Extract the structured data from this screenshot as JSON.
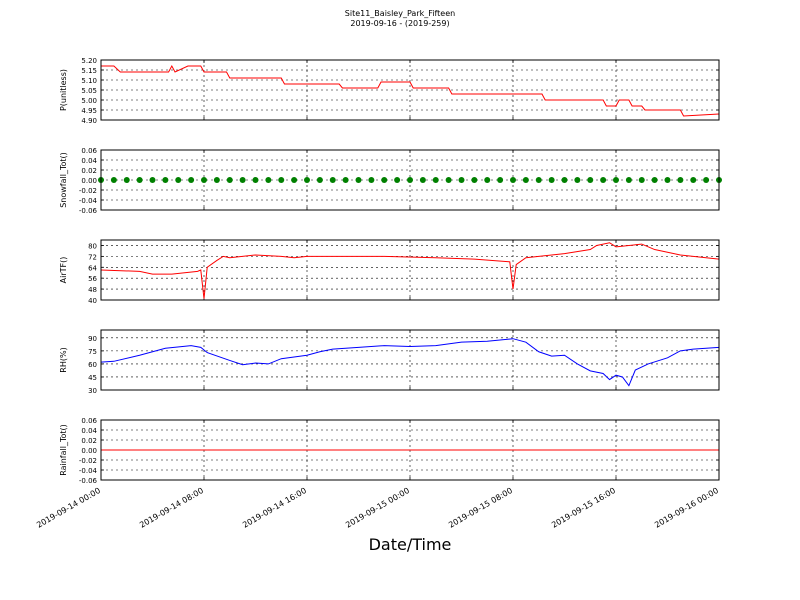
{
  "figure": {
    "title": "Site11_Baisley_Park_Fifteen",
    "subtitle": "2019-09-16 - (2019-259)",
    "xlabel": "Date/Time"
  },
  "chart_data": [
    {
      "type": "line",
      "ylabel": "P(unitless)",
      "grid": true,
      "xlim": [
        "2019-09-14 00:00",
        "2019-09-16 00:00"
      ],
      "xticks": [
        "2019-09-14 00:00",
        "2019-09-14 08:00",
        "2019-09-14 16:00",
        "2019-09-15 00:00",
        "2019-09-15 08:00",
        "2019-09-15 16:00",
        "2019-09-16 00:00"
      ],
      "ylim": [
        4.9,
        5.2
      ],
      "yticks": [
        {
          "value": 4.9,
          "label": "4.90"
        },
        4.95,
        {
          "value": 5.0,
          "label": "5.00"
        },
        5.05,
        {
          "value": 5.1,
          "label": "5.10"
        },
        5.15,
        {
          "value": 5.2,
          "label": "5.20"
        }
      ],
      "x": [
        "2019-09-14 00:00",
        "2019-09-14 01:00",
        "2019-09-14 01:30",
        "2019-09-14 05:15",
        "2019-09-14 05:30",
        "2019-09-14 05:45",
        "2019-09-14 06:45",
        "2019-09-14 07:45",
        "2019-09-14 08:00",
        "2019-09-14 09:45",
        "2019-09-14 10:00",
        "2019-09-14 14:00",
        "2019-09-14 14:15",
        "2019-09-14 18:30",
        "2019-09-14 18:45",
        "2019-09-14 21:30",
        "2019-09-14 21:45",
        "2019-09-15 00:00",
        "2019-09-15 00:15",
        "2019-09-15 03:00",
        "2019-09-15 03:15",
        "2019-09-15 10:15",
        "2019-09-15 10:30",
        "2019-09-15 15:00",
        "2019-09-15 15:15",
        "2019-09-15 16:00",
        "2019-09-15 16:15",
        "2019-09-15 17:00",
        "2019-09-15 17:15",
        "2019-09-15 18:00",
        "2019-09-15 18:15",
        "2019-09-15 21:00",
        "2019-09-15 21:15",
        "2019-09-16 00:00"
      ],
      "series": [
        {
          "name": "P",
          "color": "#ff0000",
          "values": [
            5.17,
            5.17,
            5.14,
            5.14,
            5.17,
            5.14,
            5.17,
            5.17,
            5.14,
            5.14,
            5.11,
            5.11,
            5.08,
            5.08,
            5.06,
            5.06,
            5.09,
            5.09,
            5.06,
            5.06,
            5.03,
            5.03,
            5.0,
            5.0,
            4.97,
            4.97,
            5.0,
            5.0,
            4.97,
            4.97,
            4.95,
            4.95,
            4.92,
            4.93
          ]
        }
      ]
    },
    {
      "type": "scatter",
      "ylabel": "Snowfall_Tot()",
      "grid": true,
      "xlim": [
        "2019-09-14 00:00",
        "2019-09-16 00:00"
      ],
      "xticks": [
        "2019-09-14 00:00",
        "2019-09-14 08:00",
        "2019-09-14 16:00",
        "2019-09-15 00:00",
        "2019-09-15 08:00",
        "2019-09-15 16:00",
        "2019-09-16 00:00"
      ],
      "ylim": [
        -0.06,
        0.06
      ],
      "yticks": [
        -0.06,
        -0.04,
        -0.02,
        {
          "value": 0,
          "label": "0.00"
        },
        0.02,
        0.04,
        0.06
      ],
      "x": [
        "2019-09-14 00:00",
        "2019-09-14 01:00",
        "2019-09-14 02:00",
        "2019-09-14 03:00",
        "2019-09-14 04:00",
        "2019-09-14 05:00",
        "2019-09-14 06:00",
        "2019-09-14 07:00",
        "2019-09-14 08:00",
        "2019-09-14 09:00",
        "2019-09-14 10:00",
        "2019-09-14 11:00",
        "2019-09-14 12:00",
        "2019-09-14 13:00",
        "2019-09-14 14:00",
        "2019-09-14 15:00",
        "2019-09-14 16:00",
        "2019-09-14 17:00",
        "2019-09-14 18:00",
        "2019-09-14 19:00",
        "2019-09-14 20:00",
        "2019-09-14 21:00",
        "2019-09-14 22:00",
        "2019-09-14 23:00",
        "2019-09-15 00:00",
        "2019-09-15 01:00",
        "2019-09-15 02:00",
        "2019-09-15 03:00",
        "2019-09-15 04:00",
        "2019-09-15 05:00",
        "2019-09-15 06:00",
        "2019-09-15 07:00",
        "2019-09-15 08:00",
        "2019-09-15 09:00",
        "2019-09-15 10:00",
        "2019-09-15 11:00",
        "2019-09-15 12:00",
        "2019-09-15 13:00",
        "2019-09-15 14:00",
        "2019-09-15 15:00",
        "2019-09-15 16:00",
        "2019-09-15 17:00",
        "2019-09-15 18:00",
        "2019-09-15 19:00",
        "2019-09-15 20:00",
        "2019-09-15 21:00",
        "2019-09-15 22:00",
        "2019-09-15 23:00",
        "2019-09-16 00:00"
      ],
      "series": [
        {
          "name": "Snowfall_Tot",
          "color": "#008000",
          "values": [
            0,
            0,
            0,
            0,
            0,
            0,
            0,
            0,
            0,
            0,
            0,
            0,
            0,
            0,
            0,
            0,
            0,
            0,
            0,
            0,
            0,
            0,
            0,
            0,
            0,
            0,
            0,
            0,
            0,
            0,
            0,
            0,
            0,
            0,
            0,
            0,
            0,
            0,
            0,
            0,
            0,
            0,
            0,
            0,
            0,
            0,
            0,
            0,
            0
          ]
        }
      ]
    },
    {
      "type": "line",
      "ylabel": "AirTF()",
      "grid": true,
      "xlim": [
        "2019-09-14 00:00",
        "2019-09-16 00:00"
      ],
      "xticks": [
        "2019-09-14 00:00",
        "2019-09-14 08:00",
        "2019-09-14 16:00",
        "2019-09-15 00:00",
        "2019-09-15 08:00",
        "2019-09-15 16:00",
        "2019-09-16 00:00"
      ],
      "ylim": [
        40,
        84
      ],
      "yticks": [
        40,
        48,
        56,
        64,
        72,
        80
      ],
      "x": [
        "2019-09-14 00:00",
        "2019-09-14 03:00",
        "2019-09-14 04:00",
        "2019-09-14 05:30",
        "2019-09-14 07:30",
        "2019-09-14 07:45",
        "2019-09-14 08:00",
        "2019-09-14 08:15",
        "2019-09-14 09:00",
        "2019-09-14 09:30",
        "2019-09-14 10:00",
        "2019-09-14 12:00",
        "2019-09-14 14:00",
        "2019-09-14 15:00",
        "2019-09-14 16:00",
        "2019-09-14 18:00",
        "2019-09-14 22:00",
        "2019-09-15 02:00",
        "2019-09-15 05:00",
        "2019-09-15 07:45",
        "2019-09-15 08:00",
        "2019-09-15 08:15",
        "2019-09-15 09:00",
        "2019-09-15 12:00",
        "2019-09-15 14:00",
        "2019-09-15 14:30",
        "2019-09-15 15:30",
        "2019-09-15 16:00",
        "2019-09-15 18:00",
        "2019-09-15 19:00",
        "2019-09-15 21:00",
        "2019-09-16 00:00"
      ],
      "series": [
        {
          "name": "AirTF",
          "color": "#ff0000",
          "values": [
            62,
            61,
            59,
            59,
            61,
            62,
            41,
            64,
            69,
            72,
            71,
            73,
            72,
            71,
            72,
            72,
            72,
            71,
            70,
            68,
            48,
            66,
            71,
            74,
            77,
            80,
            82,
            79,
            81,
            77,
            73,
            70
          ]
        }
      ]
    },
    {
      "type": "line",
      "ylabel": "RH(%)",
      "grid": true,
      "xlim": [
        "2019-09-14 00:00",
        "2019-09-16 00:00"
      ],
      "xticks": [
        "2019-09-14 00:00",
        "2019-09-14 08:00",
        "2019-09-14 16:00",
        "2019-09-15 00:00",
        "2019-09-15 08:00",
        "2019-09-15 16:00",
        "2019-09-16 00:00"
      ],
      "ylim": [
        30,
        99
      ],
      "yticks": [
        30,
        45,
        60,
        75,
        90
      ],
      "x": [
        "2019-09-14 00:00",
        "2019-09-14 01:00",
        "2019-09-14 03:00",
        "2019-09-14 05:00",
        "2019-09-14 07:00",
        "2019-09-14 07:45",
        "2019-09-14 08:15",
        "2019-09-14 10:00",
        "2019-09-14 11:00",
        "2019-09-14 12:00",
        "2019-09-14 13:00",
        "2019-09-14 14:00",
        "2019-09-14 16:00",
        "2019-09-14 17:00",
        "2019-09-14 18:00",
        "2019-09-14 20:00",
        "2019-09-14 22:00",
        "2019-09-15 00:00",
        "2019-09-15 02:00",
        "2019-09-15 04:00",
        "2019-09-15 06:00",
        "2019-09-15 08:00",
        "2019-09-15 09:00",
        "2019-09-15 10:00",
        "2019-09-15 11:00",
        "2019-09-15 12:00",
        "2019-09-15 13:00",
        "2019-09-15 14:00",
        "2019-09-15 15:00",
        "2019-09-15 15:30",
        "2019-09-15 16:00",
        "2019-09-15 16:30",
        "2019-09-15 17:00",
        "2019-09-15 17:30",
        "2019-09-15 18:30",
        "2019-09-15 20:00",
        "2019-09-15 21:00",
        "2019-09-15 22:00",
        "2019-09-16 00:00"
      ],
      "series": [
        {
          "name": "RH",
          "color": "#0000ff",
          "values": [
            62,
            63,
            70,
            78,
            81,
            79,
            73,
            64,
            59,
            61,
            60,
            66,
            70,
            74,
            77,
            79,
            81,
            80,
            81,
            85,
            86,
            89,
            85,
            74,
            69,
            70,
            60,
            52,
            49,
            42,
            47,
            45,
            35,
            53,
            60,
            67,
            75,
            77,
            79
          ]
        }
      ]
    },
    {
      "type": "line",
      "ylabel": "Rainfall_Tot()",
      "grid": true,
      "xlim": [
        "2019-09-14 00:00",
        "2019-09-16 00:00"
      ],
      "xticks": [
        "2019-09-14 00:00",
        "2019-09-14 08:00",
        "2019-09-14 16:00",
        "2019-09-15 00:00",
        "2019-09-15 08:00",
        "2019-09-15 16:00",
        "2019-09-16 00:00"
      ],
      "ylim": [
        -0.06,
        0.06
      ],
      "yticks": [
        -0.06,
        -0.04,
        -0.02,
        {
          "value": 0,
          "label": "0.00"
        },
        0.02,
        0.04,
        0.06
      ],
      "x": [
        "2019-09-14 00:00",
        "2019-09-15 00:00",
        "2019-09-16 00:00"
      ],
      "series": [
        {
          "name": "Rainfall_Tot",
          "color": "#ff0000",
          "values": [
            0,
            0,
            0
          ]
        }
      ]
    }
  ]
}
